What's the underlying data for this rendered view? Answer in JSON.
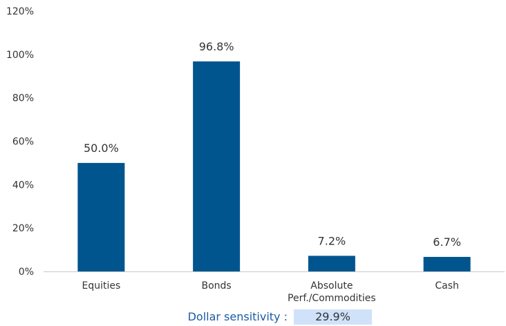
{
  "chart_data": {
    "type": "bar",
    "title": "",
    "xlabel": "",
    "ylabel": "",
    "categories": [
      [
        "Equities"
      ],
      [
        "Bonds"
      ],
      [
        "Absolute",
        "Perf./Commodities"
      ],
      [
        "Cash"
      ]
    ],
    "values": [
      50.0,
      96.8,
      7.2,
      6.7
    ],
    "data_labels": [
      "50.0%",
      "96.8%",
      "7.2%",
      "6.7%"
    ],
    "ylim": [
      0,
      120
    ],
    "yticks": [
      0,
      20,
      40,
      60,
      80,
      100,
      120
    ],
    "ytick_labels": [
      "0%",
      "20%",
      "40%",
      "60%",
      "80%",
      "100%",
      "120%"
    ],
    "bar_color": "#00558f",
    "grid": false,
    "legend": "none"
  },
  "footer": {
    "label": "Dollar sensitivity :",
    "value": "29.9%",
    "label_color": "#1a5aa6",
    "value_bg": "#cfe2fa"
  }
}
